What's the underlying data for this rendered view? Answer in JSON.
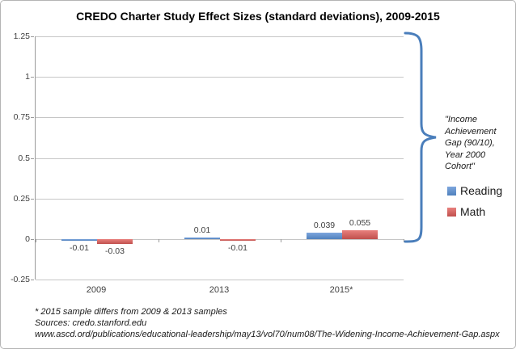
{
  "title": "CREDO Charter Study Effect Sizes (standard deviations), 2009-2015",
  "chart_data": {
    "type": "bar",
    "categories": [
      "2009",
      "2013",
      "2015*"
    ],
    "series": [
      {
        "name": "Reading",
        "color": "#4f81bd",
        "color_light": "#7ea6dd",
        "values": [
          -0.01,
          0.01,
          0.039
        ]
      },
      {
        "name": "Math",
        "color": "#c0504d",
        "color_light": "#e8807d",
        "values": [
          -0.03,
          -0.01,
          0.055
        ]
      }
    ],
    "ylim": [
      -0.25,
      1.25
    ],
    "ytick_step": 0.25,
    "grid": true,
    "legend_position": "right",
    "data_labels": true
  },
  "annotation": {
    "text": "\"Income\nAchievement\nGap (90/10),\nYear 2000\nCohort\"",
    "brace_color": "#4a7ebb"
  },
  "footnotes": {
    "line1": "* 2015 sample differs from 2009 & 2013 samples",
    "line2": "Sources: credo.stanford.edu",
    "line3": "www.ascd.ord/publications/educational-leadership/may13/vol70/num08/The-Widening-Income-Achievement-Gap.aspx"
  },
  "colors": {
    "gridline": "#c6c6c6",
    "axis": "#9a9a9a",
    "title_text": "#000000",
    "label_text": "#3f3f3f"
  }
}
